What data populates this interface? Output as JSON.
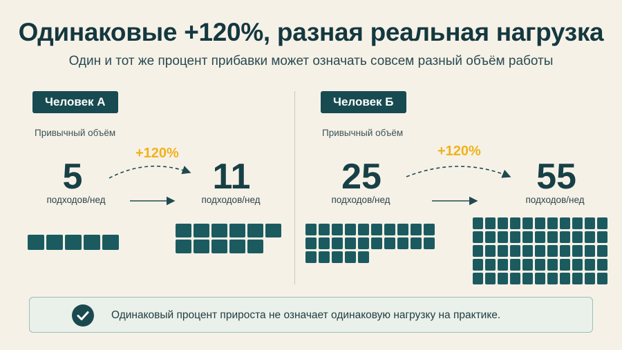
{
  "title": "Одинаковые +120%, разная реальная нагрузка",
  "subtitle": "Один и тот же процент прибавки может означать совсем разный объём работы",
  "colors": {
    "background": "#f6f1e7",
    "accent_dark": "#174b51",
    "block": "#1b5b60",
    "percent": "#f0b21c"
  },
  "panels": [
    {
      "badge": "Человек А",
      "caption": "Привычный объём",
      "from_value": "5",
      "to_value": "11",
      "unit": "подходов/нед",
      "percent": "+120%",
      "from_blocks": 5,
      "to_blocks": 11
    },
    {
      "badge": "Человек Б",
      "caption": "Привычный объём",
      "from_value": "25",
      "to_value": "55",
      "unit": "подходов/нед",
      "percent": "+120%",
      "from_blocks": 25,
      "to_blocks": 55
    }
  ],
  "note": {
    "icon": "check-circle-icon",
    "text": "Одинаковый процент прироста не означает одинаковую нагрузку на практике."
  }
}
